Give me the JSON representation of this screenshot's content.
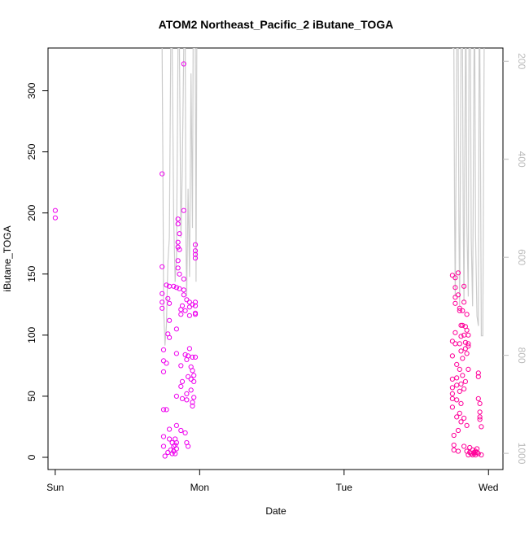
{
  "chart_data": {
    "type": "scatter",
    "title": "ATOM2 Northeast_Pacific_2 iButane_TOGA",
    "xlabel": "Date",
    "ylabel": "iButane_TOGA",
    "xlim": [
      -0.05,
      3.1
    ],
    "ylim": [
      -10,
      335
    ],
    "x_ticks": [
      {
        "value": 0,
        "label": "Sun"
      },
      {
        "value": 1,
        "label": "Mon"
      },
      {
        "value": 2,
        "label": "Tue"
      },
      {
        "value": 3,
        "label": "Wed"
      }
    ],
    "y_ticks": [
      0,
      50,
      100,
      150,
      200,
      250,
      300
    ],
    "y2_ticks": [
      200,
      400,
      600,
      800,
      1000
    ],
    "y2_range": [
      1033,
      173
    ],
    "grid": false,
    "colors": {
      "points_a": "#ee00ee",
      "points_b": "#ff0099",
      "line": "#cccccc",
      "axis": "#000000",
      "axis_right": "#bbbbbb"
    },
    "series": [
      {
        "type": "scatter",
        "values": [
          [
            0.0,
            202
          ],
          [
            0.0,
            196
          ],
          [
            0.74,
            232
          ],
          [
            0.74,
            156
          ],
          [
            0.74,
            134
          ],
          [
            0.74,
            127
          ],
          [
            0.74,
            122
          ],
          [
            0.75,
            88
          ],
          [
            0.75,
            79
          ],
          [
            0.75,
            70
          ],
          [
            0.75,
            39
          ],
          [
            0.75,
            17
          ],
          [
            0.75,
            9
          ],
          [
            0.76,
            1
          ],
          [
            0.77,
            39
          ],
          [
            0.77,
            77
          ],
          [
            0.77,
            141
          ],
          [
            0.78,
            130
          ],
          [
            0.78,
            101
          ],
          [
            0.78,
            4
          ],
          [
            0.79,
            140
          ],
          [
            0.79,
            126
          ],
          [
            0.79,
            112
          ],
          [
            0.79,
            98
          ],
          [
            0.79,
            23
          ],
          [
            0.79,
            15
          ],
          [
            0.8,
            6
          ],
          [
            0.81,
            12
          ],
          [
            0.81,
            3
          ],
          [
            0.82,
            9
          ],
          [
            0.82,
            5
          ],
          [
            0.82,
            140
          ],
          [
            0.83,
            15
          ],
          [
            0.83,
            10
          ],
          [
            0.83,
            3
          ],
          [
            0.84,
            12
          ],
          [
            0.84,
            7
          ],
          [
            0.84,
            26
          ],
          [
            0.84,
            50
          ],
          [
            0.84,
            85
          ],
          [
            0.84,
            105
          ],
          [
            0.84,
            139
          ],
          [
            0.85,
            195
          ],
          [
            0.85,
            191
          ],
          [
            0.85,
            176
          ],
          [
            0.85,
            172
          ],
          [
            0.85,
            161
          ],
          [
            0.85,
            155
          ],
          [
            0.86,
            183
          ],
          [
            0.86,
            170
          ],
          [
            0.86,
            150
          ],
          [
            0.86,
            138
          ],
          [
            0.87,
            121
          ],
          [
            0.87,
            117
          ],
          [
            0.87,
            75
          ],
          [
            0.87,
            58
          ],
          [
            0.87,
            22
          ],
          [
            0.88,
            48
          ],
          [
            0.88,
            62
          ],
          [
            0.88,
            124
          ],
          [
            0.89,
            322
          ],
          [
            0.89,
            202
          ],
          [
            0.89,
            146
          ],
          [
            0.89,
            137
          ],
          [
            0.89,
            133
          ],
          [
            0.9,
            120
          ],
          [
            0.9,
            84
          ],
          [
            0.9,
            20
          ],
          [
            0.91,
            12
          ],
          [
            0.91,
            47
          ],
          [
            0.91,
            52
          ],
          [
            0.91,
            129
          ],
          [
            0.91,
            80
          ],
          [
            0.92,
            9
          ],
          [
            0.92,
            66
          ],
          [
            0.92,
            83
          ],
          [
            0.93,
            89
          ],
          [
            0.93,
            127
          ],
          [
            0.93,
            123
          ],
          [
            0.93,
            116
          ],
          [
            0.94,
            74
          ],
          [
            0.94,
            64
          ],
          [
            0.94,
            55
          ],
          [
            0.95,
            125
          ],
          [
            0.95,
            71
          ],
          [
            0.95,
            82
          ],
          [
            0.95,
            45
          ],
          [
            0.95,
            42
          ],
          [
            0.96,
            49
          ],
          [
            0.96,
            62
          ],
          [
            0.96,
            67
          ],
          [
            0.97,
            82
          ],
          [
            0.97,
            174
          ],
          [
            0.97,
            169
          ],
          [
            0.97,
            166
          ],
          [
            0.97,
            163
          ],
          [
            0.97,
            127
          ],
          [
            0.97,
            124
          ],
          [
            0.97,
            117
          ],
          [
            0.97,
            118
          ]
        ]
      },
      {
        "type": "scatter",
        "values": [
          [
            2.75,
            149
          ],
          [
            2.75,
            95
          ],
          [
            2.75,
            83
          ],
          [
            2.75,
            64
          ],
          [
            2.75,
            57
          ],
          [
            2.75,
            52
          ],
          [
            2.75,
            48
          ],
          [
            2.75,
            41
          ],
          [
            2.76,
            18
          ],
          [
            2.76,
            10
          ],
          [
            2.76,
            6
          ],
          [
            2.77,
            147
          ],
          [
            2.77,
            139
          ],
          [
            2.77,
            131
          ],
          [
            2.77,
            126
          ],
          [
            2.77,
            102
          ],
          [
            2.77,
            93
          ],
          [
            2.78,
            76
          ],
          [
            2.78,
            65
          ],
          [
            2.78,
            59
          ],
          [
            2.78,
            47
          ],
          [
            2.78,
            33
          ],
          [
            2.79,
            22
          ],
          [
            2.79,
            5
          ],
          [
            2.79,
            151
          ],
          [
            2.79,
            133
          ],
          [
            2.8,
            122
          ],
          [
            2.8,
            120
          ],
          [
            2.8,
            93
          ],
          [
            2.8,
            72
          ],
          [
            2.8,
            54
          ],
          [
            2.8,
            36
          ],
          [
            2.81,
            108
          ],
          [
            2.81,
            99
          ],
          [
            2.81,
            87
          ],
          [
            2.81,
            60
          ],
          [
            2.81,
            44
          ],
          [
            2.81,
            29
          ],
          [
            2.82,
            120
          ],
          [
            2.82,
            108
          ],
          [
            2.82,
            81
          ],
          [
            2.82,
            67
          ],
          [
            2.83,
            140
          ],
          [
            2.83,
            127
          ],
          [
            2.83,
            100
          ],
          [
            2.83,
            56
          ],
          [
            2.83,
            32
          ],
          [
            2.83,
            9
          ],
          [
            2.84,
            107
          ],
          [
            2.84,
            94
          ],
          [
            2.84,
            89
          ],
          [
            2.84,
            62
          ],
          [
            2.85,
            117
          ],
          [
            2.85,
            104
          ],
          [
            2.85,
            85
          ],
          [
            2.85,
            26
          ],
          [
            2.85,
            5
          ],
          [
            2.86,
            100
          ],
          [
            2.86,
            93
          ],
          [
            2.86,
            91
          ],
          [
            2.86,
            72
          ],
          [
            2.86,
            2
          ],
          [
            2.87,
            8
          ],
          [
            2.87,
            4
          ],
          [
            2.88,
            3
          ],
          [
            2.89,
            2
          ],
          [
            2.89,
            6
          ],
          [
            2.9,
            3
          ],
          [
            2.9,
            4
          ],
          [
            2.91,
            5
          ],
          [
            2.91,
            2
          ],
          [
            2.92,
            4
          ],
          [
            2.92,
            7
          ],
          [
            2.93,
            3
          ],
          [
            2.93,
            69
          ],
          [
            2.93,
            66
          ],
          [
            2.93,
            48
          ],
          [
            2.94,
            44
          ],
          [
            2.94,
            37
          ],
          [
            2.94,
            33
          ],
          [
            2.94,
            31
          ],
          [
            2.95,
            25
          ],
          [
            2.95,
            2
          ]
        ]
      },
      {
        "type": "line",
        "values": [
          [
            0.74,
            173
          ],
          [
            0.74,
            173
          ],
          [
            0.745,
            400
          ],
          [
            0.75,
            700
          ],
          [
            0.76,
            780
          ],
          [
            0.77,
            740
          ],
          [
            0.78,
            610
          ],
          [
            0.79,
            560
          ],
          [
            0.8,
            173
          ],
          [
            0.81,
            173
          ],
          [
            0.82,
            520
          ],
          [
            0.83,
            650
          ],
          [
            0.84,
            600
          ],
          [
            0.85,
            173
          ],
          [
            0.86,
            173
          ],
          [
            0.87,
            560
          ],
          [
            0.88,
            420
          ],
          [
            0.89,
            173
          ],
          [
            0.9,
            173
          ],
          [
            0.905,
            570
          ],
          [
            0.91,
            680
          ],
          [
            0.92,
            460
          ],
          [
            0.93,
            640
          ],
          [
            0.94,
            225
          ],
          [
            0.95,
            540
          ],
          [
            0.955,
            173
          ],
          [
            0.97,
            173
          ],
          [
            0.975,
            650
          ],
          [
            0.98,
            173
          ],
          [
            2.75,
            173
          ],
          [
            2.76,
            173
          ],
          [
            2.765,
            520
          ],
          [
            2.77,
            680
          ],
          [
            2.78,
            173
          ],
          [
            2.79,
            173
          ],
          [
            2.795,
            540
          ],
          [
            2.8,
            700
          ],
          [
            2.81,
            173
          ],
          [
            2.82,
            173
          ],
          [
            2.825,
            520
          ],
          [
            2.83,
            690
          ],
          [
            2.84,
            173
          ],
          [
            2.845,
            173
          ],
          [
            2.85,
            530
          ],
          [
            2.86,
            680
          ],
          [
            2.865,
            173
          ],
          [
            2.875,
            173
          ],
          [
            2.88,
            560
          ],
          [
            2.89,
            700
          ],
          [
            2.9,
            173
          ],
          [
            2.905,
            173
          ],
          [
            2.91,
            550
          ],
          [
            2.92,
            720
          ],
          [
            2.93,
            740
          ],
          [
            2.935,
            173
          ],
          [
            2.94,
            173
          ],
          [
            2.945,
            420
          ],
          [
            2.95,
            760
          ],
          [
            2.96,
            760
          ],
          [
            2.97,
            173
          ]
        ]
      }
    ]
  }
}
